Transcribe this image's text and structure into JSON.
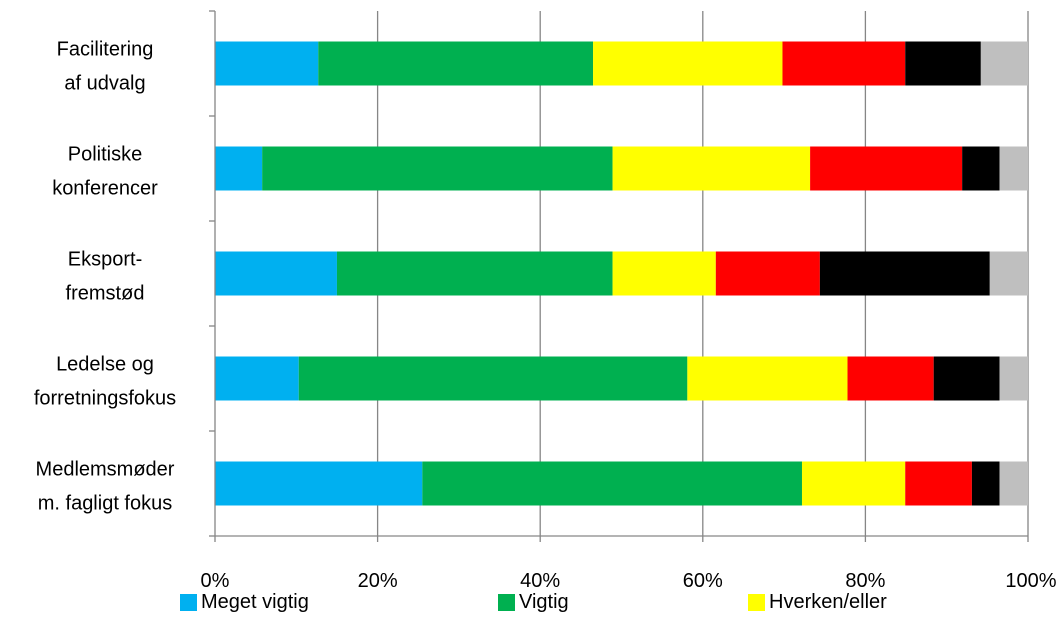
{
  "chart_data": {
    "type": "bar",
    "orientation": "horizontal",
    "stacked": "percent",
    "categories": [
      [
        "Facilitering",
        "af udvalg"
      ],
      [
        "Politiske",
        "konferencer"
      ],
      [
        "Eksport-",
        "fremstød"
      ],
      [
        "Ledelse og",
        "forretningsfokus"
      ],
      [
        "Medlemsmøder",
        "m. fagligt fokus"
      ]
    ],
    "series": [
      {
        "name": "Meget vigtig",
        "color": "#00B0F0",
        "values": [
          12.7,
          5.8,
          15.0,
          10.3,
          25.5
        ]
      },
      {
        "name": "Vigtig",
        "color": "#00B050",
        "values": [
          33.8,
          43.1,
          33.9,
          47.8,
          46.7
        ]
      },
      {
        "name": "Hverken/eller",
        "color": "#FFFF00",
        "values": [
          23.3,
          24.3,
          12.7,
          19.7,
          12.7
        ]
      },
      {
        "name": "",
        "color": "#FF0000",
        "values": [
          15.1,
          18.7,
          12.8,
          10.6,
          8.2
        ]
      },
      {
        "name": "",
        "color": "#000000",
        "values": [
          9.3,
          4.6,
          20.9,
          8.1,
          3.4
        ]
      },
      {
        "name": "",
        "color": "#BFBFBF",
        "values": [
          5.8,
          3.5,
          4.7,
          3.5,
          3.5
        ]
      }
    ],
    "xlim": [
      0,
      100
    ],
    "xticks": [
      "0%",
      "20%",
      "40%",
      "60%",
      "80%",
      "100%"
    ],
    "grid": "vertical",
    "legend_position": "bottom"
  }
}
